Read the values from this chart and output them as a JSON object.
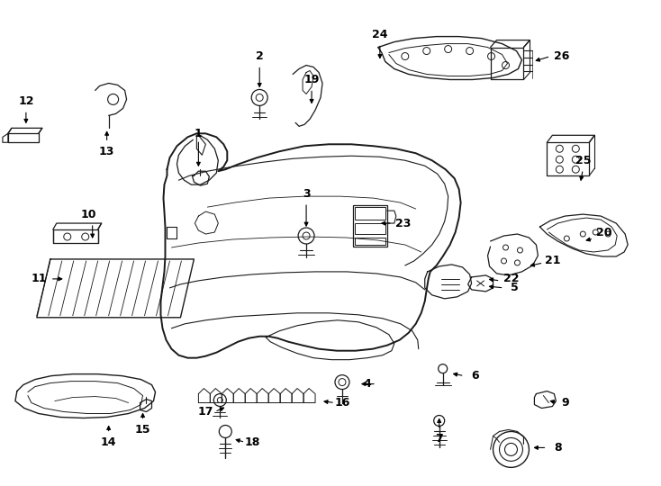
{
  "bg_color": "#ffffff",
  "line_color": "#1a1a1a",
  "fig_width": 7.34,
  "fig_height": 5.4,
  "dpi": 100,
  "labels": [
    [
      "1",
      220,
      148
    ],
    [
      "2",
      288,
      62
    ],
    [
      "3",
      340,
      215
    ],
    [
      "4",
      408,
      427
    ],
    [
      "5",
      572,
      320
    ],
    [
      "6",
      528,
      418
    ],
    [
      "7",
      488,
      488
    ],
    [
      "8",
      620,
      498
    ],
    [
      "9",
      628,
      448
    ],
    [
      "10",
      98,
      238
    ],
    [
      "11",
      42,
      310
    ],
    [
      "12",
      28,
      112
    ],
    [
      "13",
      118,
      168
    ],
    [
      "14",
      120,
      492
    ],
    [
      "15",
      158,
      478
    ],
    [
      "16",
      380,
      448
    ],
    [
      "17",
      228,
      458
    ],
    [
      "18",
      280,
      492
    ],
    [
      "19",
      346,
      88
    ],
    [
      "20",
      672,
      258
    ],
    [
      "21",
      614,
      290
    ],
    [
      "22",
      568,
      310
    ],
    [
      "23",
      448,
      248
    ],
    [
      "24",
      422,
      38
    ],
    [
      "25",
      648,
      178
    ],
    [
      "26",
      624,
      62
    ]
  ],
  "arrows": [
    [
      "1",
      220,
      155,
      220,
      188
    ],
    [
      "2",
      288,
      72,
      288,
      100
    ],
    [
      "3",
      340,
      225,
      340,
      255
    ],
    [
      "4",
      418,
      427,
      398,
      427
    ],
    [
      "5",
      560,
      320,
      540,
      318
    ],
    [
      "6",
      516,
      418,
      500,
      415
    ],
    [
      "7",
      488,
      478,
      488,
      462
    ],
    [
      "8",
      608,
      498,
      590,
      498
    ],
    [
      "9",
      620,
      448,
      608,
      445
    ],
    [
      "10",
      102,
      248,
      102,
      268
    ],
    [
      "11",
      55,
      310,
      72,
      310
    ],
    [
      "12",
      28,
      122,
      28,
      140
    ],
    [
      "13",
      118,
      158,
      118,
      142
    ],
    [
      "14",
      120,
      482,
      120,
      470
    ],
    [
      "15",
      158,
      468,
      158,
      456
    ],
    [
      "16",
      372,
      448,
      356,
      446
    ],
    [
      "17",
      238,
      458,
      252,
      452
    ],
    [
      "18",
      272,
      492,
      258,
      488
    ],
    [
      "19",
      346,
      98,
      346,
      118
    ],
    [
      "20",
      660,
      265,
      648,
      268
    ],
    [
      "21",
      604,
      292,
      586,
      296
    ],
    [
      "22",
      556,
      312,
      540,
      310
    ],
    [
      "23",
      436,
      248,
      420,
      248
    ],
    [
      "24",
      422,
      48,
      422,
      68
    ],
    [
      "25",
      648,
      188,
      645,
      204
    ],
    [
      "26",
      612,
      62,
      592,
      68
    ]
  ]
}
